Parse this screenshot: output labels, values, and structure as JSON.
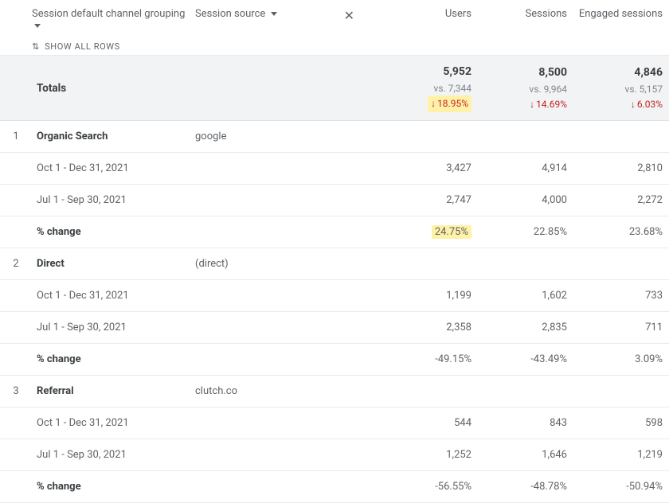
{
  "colors": {
    "text_primary": "#3c4043",
    "text_secondary": "#5f6368",
    "text_muted": "#80868b",
    "decrease": "#c5221f",
    "highlight_bg": "#fff2a8",
    "row_border": "#e8eaed",
    "totals_bg": "#f1f3f4"
  },
  "header": {
    "col1": "Session default channel grouping",
    "col2": "Session source",
    "show_all": "SHOW ALL ROWS",
    "metrics": [
      "Users",
      "Sessions",
      "Engaged sessions"
    ]
  },
  "totals": {
    "label": "Totals",
    "users": {
      "value": "5,952",
      "vs": "vs. 7,344",
      "delta": "18.95%",
      "highlight": true
    },
    "sessions": {
      "value": "8,500",
      "vs": "vs. 9,964",
      "delta": "14.69%",
      "highlight": false
    },
    "engaged": {
      "value": "4,846",
      "vs": "vs. 5,157",
      "delta": "6.03%",
      "highlight": false
    }
  },
  "period_labels": {
    "current": "Oct 1 - Dec 31, 2021",
    "previous": "Jul 1 - Sep 30, 2021",
    "change": "% change"
  },
  "groups": [
    {
      "idx": "1",
      "name": "Organic Search",
      "source": "google",
      "current": {
        "users": "3,427",
        "sessions": "4,914",
        "engaged": "2,810"
      },
      "previous": {
        "users": "2,747",
        "sessions": "4,000",
        "engaged": "2,272"
      },
      "change": {
        "users": "24.75%",
        "sessions": "22.85%",
        "engaged": "23.68%",
        "highlight_users": true
      }
    },
    {
      "idx": "2",
      "name": "Direct",
      "source": "(direct)",
      "current": {
        "users": "1,199",
        "sessions": "1,602",
        "engaged": "733"
      },
      "previous": {
        "users": "2,358",
        "sessions": "2,835",
        "engaged": "711"
      },
      "change": {
        "users": "-49.15%",
        "sessions": "-43.49%",
        "engaged": "3.09%",
        "highlight_users": false
      }
    },
    {
      "idx": "3",
      "name": "Referral",
      "source": "clutch.co",
      "current": {
        "users": "544",
        "sessions": "843",
        "engaged": "598"
      },
      "previous": {
        "users": "1,252",
        "sessions": "1,646",
        "engaged": "1,219"
      },
      "change": {
        "users": "-56.55%",
        "sessions": "-48.78%",
        "engaged": "-50.94%",
        "highlight_users": false
      }
    }
  ]
}
